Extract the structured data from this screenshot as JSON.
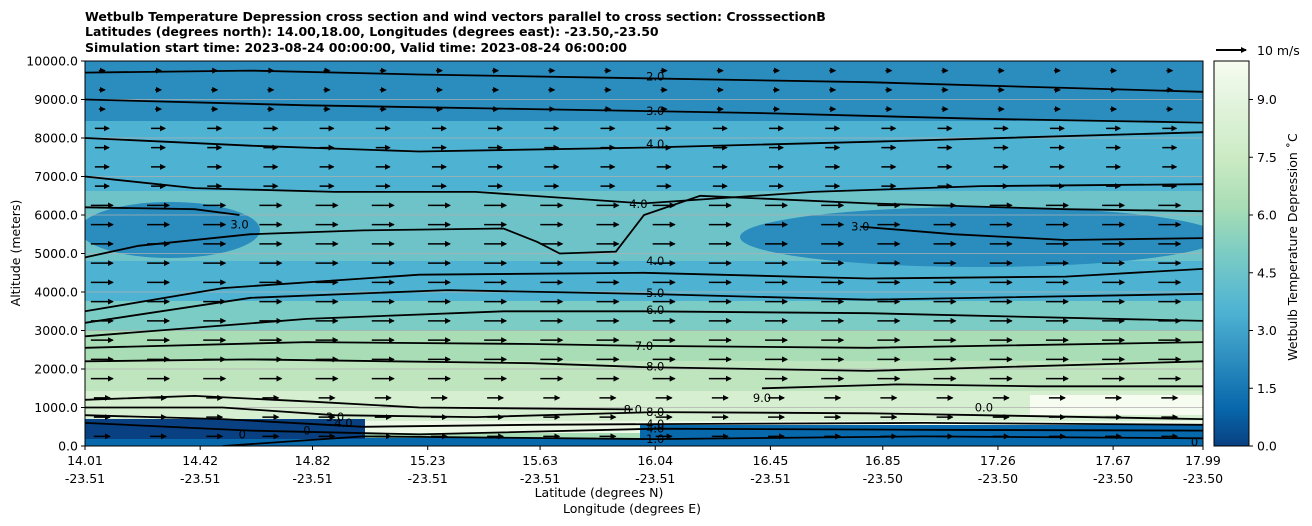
{
  "chart_data": {
    "type": "heatmap",
    "title_lines": [
      "Wetbulb Temperature Depression cross section and wind vectors parallel to cross section: CrosssectionB",
      "Latitudes (degrees north): 14.00,18.00, Longitudes (degrees east): -23.50,-23.50",
      "Simulation start time: 2023-08-24 00:00:00, Valid time: 2023-08-24 06:00:00"
    ],
    "ylabel": "Altitude (meters)",
    "xlabel_line1": "Latitude (degrees N)",
    "xlabel_line2": "Longitude (degrees E)",
    "colorbar_label": "Wetbulb Temperature Depression ˚C",
    "quiver_key_label": "10 m/s",
    "ylim": [
      0,
      10000
    ],
    "y_ticks": [
      "0.0",
      "1000.0",
      "2000.0",
      "3000.0",
      "4000.0",
      "5000.0",
      "6000.0",
      "7000.0",
      "8000.0",
      "9000.0",
      "10000.0"
    ],
    "x_ticks": [
      {
        "lat": "14.01",
        "lon": "-23.51"
      },
      {
        "lat": "14.42",
        "lon": "-23.51"
      },
      {
        "lat": "14.82",
        "lon": "-23.51"
      },
      {
        "lat": "15.23",
        "lon": "-23.51"
      },
      {
        "lat": "15.63",
        "lon": "-23.51"
      },
      {
        "lat": "16.04",
        "lon": "-23.51"
      },
      {
        "lat": "16.45",
        "lon": "-23.51"
      },
      {
        "lat": "16.85",
        "lon": "-23.50"
      },
      {
        "lat": "17.26",
        "lon": "-23.50"
      },
      {
        "lat": "17.67",
        "lon": "-23.50"
      },
      {
        "lat": "17.99",
        "lon": "-23.50"
      }
    ],
    "colorbar_ticks": [
      "0.0",
      "1.5",
      "3.0",
      "4.5",
      "6.0",
      "7.5",
      "9.0"
    ],
    "colorbar_range": [
      0,
      10
    ],
    "grid": true,
    "contour_labels": [
      {
        "text": "2.0",
        "lat": 16.04,
        "alt": 9600
      },
      {
        "text": "3.0",
        "lat": 16.04,
        "alt": 8700
      },
      {
        "text": "4.0",
        "lat": 16.04,
        "alt": 7850
      },
      {
        "text": "4.0",
        "lat": 15.98,
        "alt": 6280
      },
      {
        "text": "4.0",
        "lat": 16.04,
        "alt": 4800
      },
      {
        "text": "5.0",
        "lat": 16.04,
        "alt": 3980
      },
      {
        "text": "6.0",
        "lat": 16.04,
        "alt": 3530
      },
      {
        "text": "7.0",
        "lat": 16.0,
        "alt": 2600
      },
      {
        "text": "8.0",
        "lat": 16.04,
        "alt": 2060
      },
      {
        "text": "8.0",
        "lat": 15.96,
        "alt": 950
      },
      {
        "text": "8.0",
        "lat": 16.04,
        "alt": 880
      },
      {
        "text": "9.0",
        "lat": 16.42,
        "alt": 1250
      },
      {
        "text": "1.0",
        "lat": 16.04,
        "alt": 180
      },
      {
        "text": "3.0",
        "lat": 14.56,
        "alt": 5750
      },
      {
        "text": "3.0",
        "lat": 16.77,
        "alt": 5700
      },
      {
        "text": "0",
        "lat": 14.57,
        "alt": 300
      },
      {
        "text": "0",
        "lat": 14.8,
        "alt": 400
      },
      {
        "text": "4.0",
        "lat": 14.93,
        "alt": 600
      },
      {
        "text": "3.0",
        "lat": 14.9,
        "alt": 750
      },
      {
        "text": "4.0",
        "lat": 16.04,
        "alt": 570
      },
      {
        "text": "4.0",
        "lat": 16.04,
        "alt": 450
      },
      {
        "text": "0.0",
        "lat": 17.21,
        "alt": 1000
      },
      {
        "text": "0",
        "lat": 17.96,
        "alt": 100
      }
    ]
  }
}
